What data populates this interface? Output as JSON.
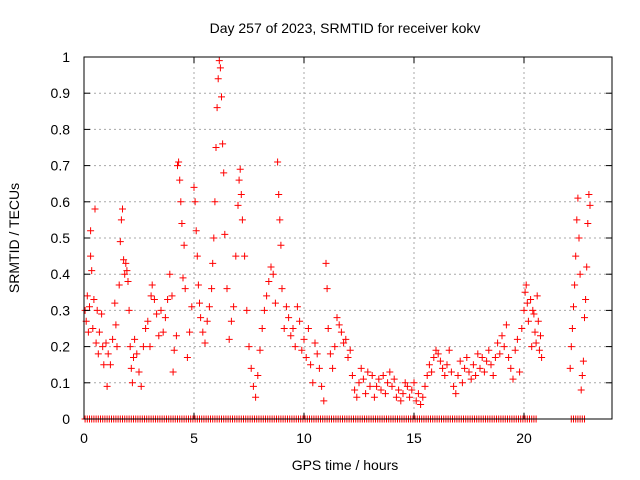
{
  "chart_data": {
    "type": "scatter",
    "title": "Day 257 of 2023, SRMTID for receiver kokv",
    "xlabel": "GPS time / hours",
    "ylabel": "SRMTID / TECUs",
    "xlim": [
      0,
      24
    ],
    "ylim": [
      0,
      1
    ],
    "xticks": [
      0,
      5,
      10,
      15,
      20
    ],
    "yticks": [
      0,
      0.1,
      0.2,
      0.3,
      0.4,
      0.5,
      0.6,
      0.7,
      0.8,
      0.9,
      1
    ],
    "xtick_labels": [
      "0",
      "5",
      "10",
      "15",
      "20"
    ],
    "ytick_labels": [
      "0",
      "0.1",
      "0.2",
      "0.3",
      "0.4",
      "0.5",
      "0.6",
      "0.7",
      "0.8",
      "0.9",
      "1"
    ],
    "grid": true,
    "marker": "+",
    "color": "#ff0000",
    "points": [
      [
        0.05,
        0.3
      ],
      [
        0.1,
        0.27
      ],
      [
        0.15,
        0.34
      ],
      [
        0.2,
        0.24
      ],
      [
        0.25,
        0.31
      ],
      [
        0.3,
        0.45
      ],
      [
        0.3,
        0.52
      ],
      [
        0.35,
        0.41
      ],
      [
        0.4,
        0.25
      ],
      [
        0.45,
        0.33
      ],
      [
        0.5,
        0.58
      ],
      [
        0.55,
        0.21
      ],
      [
        0.6,
        0.3
      ],
      [
        0.65,
        0.18
      ],
      [
        0.7,
        0.24
      ],
      [
        0.8,
        0.29
      ],
      [
        0.85,
        0.2
      ],
      [
        0.9,
        0.15
      ],
      [
        1.0,
        0.21
      ],
      [
        1.05,
        0.09
      ],
      [
        1.1,
        0.18
      ],
      [
        1.2,
        0.15
      ],
      [
        1.3,
        0.22
      ],
      [
        1.4,
        0.32
      ],
      [
        1.45,
        0.26
      ],
      [
        1.5,
        0.2
      ],
      [
        1.6,
        0.37
      ],
      [
        1.65,
        0.49
      ],
      [
        1.7,
        0.55
      ],
      [
        1.75,
        0.58
      ],
      [
        1.8,
        0.44
      ],
      [
        1.85,
        0.4
      ],
      [
        1.9,
        0.43
      ],
      [
        1.95,
        0.41
      ],
      [
        2.0,
        0.38
      ],
      [
        2.05,
        0.3
      ],
      [
        2.1,
        0.2
      ],
      [
        2.15,
        0.14
      ],
      [
        2.2,
        0.1
      ],
      [
        2.25,
        0.17
      ],
      [
        2.3,
        0.22
      ],
      [
        2.4,
        0.18
      ],
      [
        2.5,
        0.13
      ],
      [
        2.6,
        0.09
      ],
      [
        2.7,
        0.2
      ],
      [
        2.8,
        0.25
      ],
      [
        2.9,
        0.27
      ],
      [
        3.0,
        0.2
      ],
      [
        3.05,
        0.34
      ],
      [
        3.1,
        0.37
      ],
      [
        3.2,
        0.33
      ],
      [
        3.3,
        0.29
      ],
      [
        3.4,
        0.23
      ],
      [
        3.5,
        0.3
      ],
      [
        3.6,
        0.24
      ],
      [
        3.7,
        0.28
      ],
      [
        3.8,
        0.33
      ],
      [
        3.9,
        0.4
      ],
      [
        4.0,
        0.34
      ],
      [
        4.05,
        0.13
      ],
      [
        4.1,
        0.19
      ],
      [
        4.2,
        0.23
      ],
      [
        4.25,
        0.7
      ],
      [
        4.3,
        0.71
      ],
      [
        4.35,
        0.66
      ],
      [
        4.4,
        0.6
      ],
      [
        4.45,
        0.54
      ],
      [
        4.5,
        0.39
      ],
      [
        4.55,
        0.48
      ],
      [
        4.6,
        0.36
      ],
      [
        4.7,
        0.17
      ],
      [
        4.8,
        0.24
      ],
      [
        4.9,
        0.31
      ],
      [
        5.0,
        0.64
      ],
      [
        5.05,
        0.6
      ],
      [
        5.1,
        0.52
      ],
      [
        5.15,
        0.45
      ],
      [
        5.2,
        0.37
      ],
      [
        5.25,
        0.32
      ],
      [
        5.3,
        0.28
      ],
      [
        5.4,
        0.24
      ],
      [
        5.5,
        0.21
      ],
      [
        5.6,
        0.27
      ],
      [
        5.7,
        0.31
      ],
      [
        5.8,
        0.36
      ],
      [
        5.85,
        0.43
      ],
      [
        5.9,
        0.5
      ],
      [
        5.95,
        0.6
      ],
      [
        6.0,
        0.75
      ],
      [
        6.05,
        0.86
      ],
      [
        6.1,
        0.94
      ],
      [
        6.15,
        0.99
      ],
      [
        6.2,
        0.97
      ],
      [
        6.25,
        0.89
      ],
      [
        6.3,
        0.76
      ],
      [
        6.35,
        0.68
      ],
      [
        6.4,
        0.51
      ],
      [
        6.5,
        0.36
      ],
      [
        6.6,
        0.22
      ],
      [
        6.7,
        0.27
      ],
      [
        6.8,
        0.31
      ],
      [
        6.9,
        0.45
      ],
      [
        7.0,
        0.59
      ],
      [
        7.05,
        0.66
      ],
      [
        7.1,
        0.69
      ],
      [
        7.15,
        0.62
      ],
      [
        7.2,
        0.55
      ],
      [
        7.3,
        0.45
      ],
      [
        7.4,
        0.3
      ],
      [
        7.5,
        0.2
      ],
      [
        7.6,
        0.14
      ],
      [
        7.7,
        0.09
      ],
      [
        7.8,
        0.06
      ],
      [
        7.9,
        0.12
      ],
      [
        8.0,
        0.19
      ],
      [
        8.1,
        0.25
      ],
      [
        8.2,
        0.3
      ],
      [
        8.3,
        0.34
      ],
      [
        8.4,
        0.38
      ],
      [
        8.5,
        0.42
      ],
      [
        8.6,
        0.4
      ],
      [
        8.7,
        0.32
      ],
      [
        8.8,
        0.71
      ],
      [
        8.85,
        0.62
      ],
      [
        8.9,
        0.55
      ],
      [
        8.95,
        0.48
      ],
      [
        9.0,
        0.36
      ],
      [
        9.1,
        0.25
      ],
      [
        9.2,
        0.31
      ],
      [
        9.3,
        0.28
      ],
      [
        9.4,
        0.23
      ],
      [
        9.5,
        0.25
      ],
      [
        9.6,
        0.2
      ],
      [
        9.7,
        0.31
      ],
      [
        9.8,
        0.27
      ],
      [
        9.9,
        0.19
      ],
      [
        10.0,
        0.22
      ],
      [
        10.1,
        0.17
      ],
      [
        10.2,
        0.25
      ],
      [
        10.3,
        0.15
      ],
      [
        10.4,
        0.1
      ],
      [
        10.5,
        0.21
      ],
      [
        10.6,
        0.18
      ],
      [
        10.7,
        0.14
      ],
      [
        10.8,
        0.09
      ],
      [
        10.9,
        0.05
      ],
      [
        11.0,
        0.43
      ],
      [
        11.05,
        0.36
      ],
      [
        11.1,
        0.25
      ],
      [
        11.2,
        0.18
      ],
      [
        11.3,
        0.14
      ],
      [
        11.4,
        0.2
      ],
      [
        11.5,
        0.28
      ],
      [
        11.6,
        0.26
      ],
      [
        11.7,
        0.24
      ],
      [
        11.8,
        0.21
      ],
      [
        11.9,
        0.22
      ],
      [
        12.0,
        0.17
      ],
      [
        12.1,
        0.19
      ],
      [
        12.2,
        0.12
      ],
      [
        12.3,
        0.08
      ],
      [
        12.4,
        0.06
      ],
      [
        12.5,
        0.1
      ],
      [
        12.6,
        0.14
      ],
      [
        12.7,
        0.11
      ],
      [
        12.8,
        0.07
      ],
      [
        12.9,
        0.13
      ],
      [
        13.0,
        0.09
      ],
      [
        13.1,
        0.12
      ],
      [
        13.2,
        0.06
      ],
      [
        13.3,
        0.09
      ],
      [
        13.4,
        0.11
      ],
      [
        13.5,
        0.08
      ],
      [
        13.6,
        0.12
      ],
      [
        13.7,
        0.07
      ],
      [
        13.8,
        0.1
      ],
      [
        13.9,
        0.13
      ],
      [
        14.0,
        0.09
      ],
      [
        14.1,
        0.11
      ],
      [
        14.2,
        0.06
      ],
      [
        14.3,
        0.08
      ],
      [
        14.4,
        0.05
      ],
      [
        14.5,
        0.07
      ],
      [
        14.6,
        0.1
      ],
      [
        14.7,
        0.09
      ],
      [
        14.8,
        0.06
      ],
      [
        14.9,
        0.08
      ],
      [
        15.0,
        0.1
      ],
      [
        15.1,
        0.05
      ],
      [
        15.2,
        0.07
      ],
      [
        15.3,
        0.04
      ],
      [
        15.4,
        0.06
      ],
      [
        15.5,
        0.09
      ],
      [
        15.6,
        0.12
      ],
      [
        15.7,
        0.15
      ],
      [
        15.8,
        0.13
      ],
      [
        15.9,
        0.17
      ],
      [
        16.0,
        0.19
      ],
      [
        16.1,
        0.18
      ],
      [
        16.2,
        0.16
      ],
      [
        16.3,
        0.14
      ],
      [
        16.4,
        0.12
      ],
      [
        16.5,
        0.15
      ],
      [
        16.6,
        0.19
      ],
      [
        16.7,
        0.13
      ],
      [
        16.8,
        0.09
      ],
      [
        16.9,
        0.07
      ],
      [
        17.0,
        0.12
      ],
      [
        17.1,
        0.16
      ],
      [
        17.2,
        0.1
      ],
      [
        17.3,
        0.14
      ],
      [
        17.4,
        0.17
      ],
      [
        17.5,
        0.13
      ],
      [
        17.6,
        0.11
      ],
      [
        17.7,
        0.15
      ],
      [
        17.8,
        0.12
      ],
      [
        17.9,
        0.18
      ],
      [
        18.0,
        0.14
      ],
      [
        18.1,
        0.17
      ],
      [
        18.2,
        0.13
      ],
      [
        18.3,
        0.16
      ],
      [
        18.4,
        0.19
      ],
      [
        18.5,
        0.15
      ],
      [
        18.6,
        0.12
      ],
      [
        18.7,
        0.17
      ],
      [
        18.8,
        0.21
      ],
      [
        18.9,
        0.18
      ],
      [
        19.0,
        0.23
      ],
      [
        19.1,
        0.2
      ],
      [
        19.2,
        0.26
      ],
      [
        19.3,
        0.17
      ],
      [
        19.4,
        0.14
      ],
      [
        19.5,
        0.11
      ],
      [
        19.6,
        0.19
      ],
      [
        19.7,
        0.22
      ],
      [
        19.8,
        0.13
      ],
      [
        19.9,
        0.25
      ],
      [
        20.0,
        0.3
      ],
      [
        20.05,
        0.35
      ],
      [
        20.1,
        0.37
      ],
      [
        20.15,
        0.32
      ],
      [
        20.2,
        0.27
      ],
      [
        20.3,
        0.33
      ],
      [
        20.35,
        0.2
      ],
      [
        20.4,
        0.3
      ],
      [
        20.45,
        0.29
      ],
      [
        20.5,
        0.24
      ],
      [
        20.55,
        0.21
      ],
      [
        20.6,
        0.34
      ],
      [
        20.65,
        0.27
      ],
      [
        20.7,
        0.19
      ],
      [
        20.75,
        0.23
      ],
      [
        20.8,
        0.17
      ],
      [
        22.1,
        0.14
      ],
      [
        22.15,
        0.2
      ],
      [
        22.2,
        0.25
      ],
      [
        22.25,
        0.31
      ],
      [
        22.3,
        0.37
      ],
      [
        22.35,
        0.45
      ],
      [
        22.4,
        0.55
      ],
      [
        22.45,
        0.61
      ],
      [
        22.5,
        0.5
      ],
      [
        22.55,
        0.4
      ],
      [
        22.6,
        0.08
      ],
      [
        22.65,
        0.12
      ],
      [
        22.7,
        0.16
      ],
      [
        22.75,
        0.28
      ],
      [
        22.8,
        0.33
      ],
      [
        22.85,
        0.42
      ],
      [
        22.9,
        0.54
      ],
      [
        22.95,
        0.62
      ],
      [
        23.0,
        0.59
      ]
    ],
    "zero_points_x": [
      0.05,
      0.15,
      0.25,
      0.35,
      0.45,
      0.55,
      0.65,
      0.75,
      0.85,
      0.95,
      1.05,
      1.15,
      1.25,
      1.35,
      1.45,
      1.55,
      1.65,
      1.75,
      1.85,
      1.95,
      2.05,
      2.15,
      2.25,
      2.35,
      2.45,
      2.55,
      2.65,
      2.75,
      2.85,
      2.95,
      3.05,
      3.15,
      3.25,
      3.35,
      3.45,
      3.55,
      3.65,
      3.75,
      3.85,
      3.95,
      4.05,
      4.15,
      4.25,
      4.35,
      4.45,
      4.55,
      4.65,
      4.75,
      4.85,
      4.95,
      5.05,
      5.15,
      5.25,
      5.35,
      5.45,
      5.55,
      5.65,
      5.75,
      5.85,
      5.95,
      6.05,
      6.15,
      6.25,
      6.35,
      6.45,
      6.55,
      6.65,
      6.75,
      6.85,
      6.95,
      7.05,
      7.15,
      7.25,
      7.35,
      7.45,
      7.55,
      7.65,
      7.75,
      7.85,
      7.95,
      8.05,
      8.15,
      8.25,
      8.35,
      8.45,
      8.55,
      8.65,
      8.75,
      8.85,
      8.95,
      9.05,
      9.15,
      9.25,
      9.35,
      9.45,
      9.55,
      9.65,
      9.75,
      9.85,
      9.95,
      10.05,
      10.15,
      10.25,
      10.35,
      10.45,
      10.55,
      10.65,
      10.75,
      10.85,
      10.95,
      11.05,
      11.15,
      11.25,
      11.35,
      11.45,
      11.55,
      11.65,
      11.75,
      11.85,
      11.95,
      12.05,
      12.15,
      12.25,
      12.35,
      12.45,
      12.55,
      12.65,
      12.75,
      12.85,
      12.95,
      13.05,
      13.15,
      13.25,
      13.35,
      13.45,
      13.55,
      13.65,
      13.75,
      13.85,
      13.95,
      14.05,
      14.15,
      14.25,
      14.35,
      14.45,
      14.55,
      14.65,
      14.75,
      14.85,
      14.95,
      15.05,
      15.15,
      15.25,
      15.35,
      15.45,
      15.55,
      15.65,
      15.75,
      15.85,
      15.95,
      16.05,
      16.15,
      16.25,
      16.35,
      16.45,
      16.55,
      16.65,
      16.75,
      16.85,
      16.95,
      17.05,
      17.15,
      17.25,
      17.35,
      17.45,
      17.55,
      17.65,
      17.75,
      17.85,
      17.95,
      18.05,
      18.15,
      18.25,
      18.35,
      18.45,
      18.55,
      18.65,
      18.75,
      18.85,
      18.95,
      19.05,
      19.15,
      19.25,
      19.35,
      19.45,
      19.55,
      19.65,
      19.75,
      19.85,
      19.95,
      20.05,
      20.15,
      20.25,
      20.35,
      20.45,
      20.55,
      22.15,
      22.25,
      22.35,
      22.45,
      22.55,
      22.65,
      22.75
    ]
  }
}
